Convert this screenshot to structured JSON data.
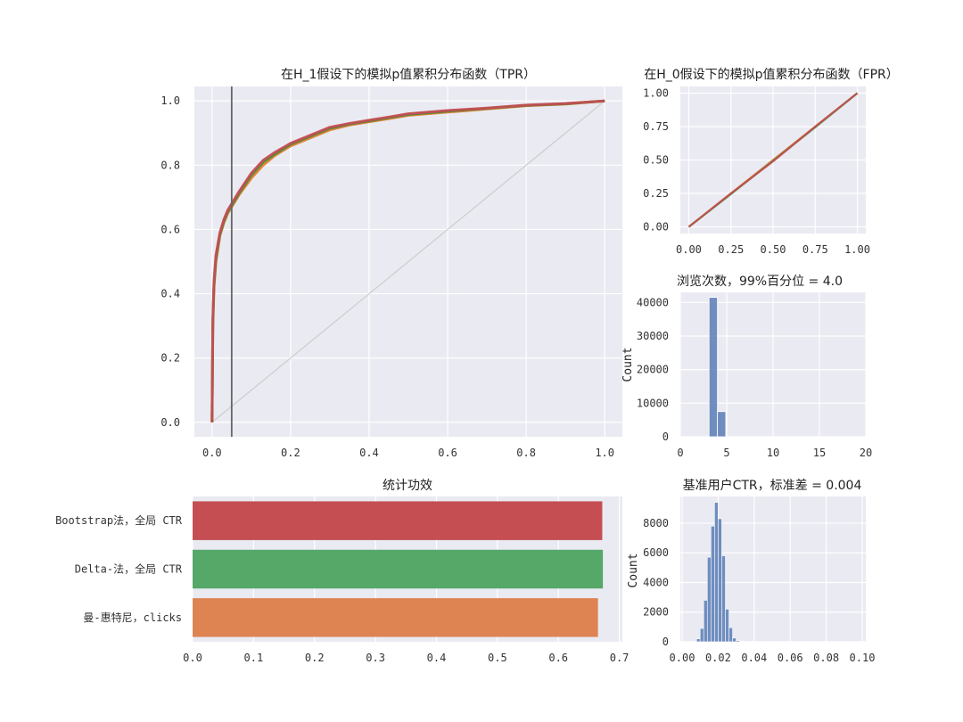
{
  "chart_data": [
    {
      "id": "tpr",
      "type": "line",
      "title": "在H_1假设下的模拟p值累积分布函数（TPR）",
      "xlim": [
        -0.045,
        1.045
      ],
      "ylim": [
        -0.045,
        1.045
      ],
      "xticks": [
        "0.0",
        "0.2",
        "0.4",
        "0.6",
        "0.8",
        "1.0"
      ],
      "yticks": [
        "0.0",
        "0.2",
        "0.4",
        "0.6",
        "0.8",
        "1.0"
      ],
      "grid": true,
      "vline_x": 0.05,
      "reference_line": [
        [
          0,
          0
        ],
        [
          1,
          1
        ]
      ],
      "series": [
        {
          "color": "#e1812c",
          "x": [
            0,
            0.002,
            0.005,
            0.01,
            0.02,
            0.03,
            0.04,
            0.05,
            0.07,
            0.1,
            0.13,
            0.16,
            0.2,
            0.25,
            0.3,
            0.35,
            0.4,
            0.45,
            0.5,
            0.6,
            0.7,
            0.8,
            0.9,
            1.0
          ],
          "y": [
            0,
            0.3,
            0.42,
            0.5,
            0.58,
            0.62,
            0.65,
            0.67,
            0.71,
            0.76,
            0.8,
            0.83,
            0.86,
            0.885,
            0.91,
            0.925,
            0.935,
            0.945,
            0.955,
            0.965,
            0.975,
            0.985,
            0.99,
            1.0
          ]
        },
        {
          "color": "#3a923a",
          "x": [
            0,
            0.002,
            0.005,
            0.01,
            0.02,
            0.03,
            0.04,
            0.05,
            0.07,
            0.1,
            0.13,
            0.16,
            0.2,
            0.25,
            0.3,
            0.35,
            0.4,
            0.45,
            0.5,
            0.6,
            0.7,
            0.8,
            0.9,
            1.0
          ],
          "y": [
            0,
            0.31,
            0.43,
            0.51,
            0.585,
            0.625,
            0.655,
            0.675,
            0.715,
            0.77,
            0.81,
            0.835,
            0.865,
            0.89,
            0.915,
            0.928,
            0.938,
            0.948,
            0.958,
            0.968,
            0.977,
            0.986,
            0.991,
            1.0
          ]
        },
        {
          "color": "#c44e52",
          "x": [
            0,
            0.002,
            0.005,
            0.01,
            0.02,
            0.03,
            0.04,
            0.05,
            0.07,
            0.1,
            0.13,
            0.16,
            0.2,
            0.25,
            0.3,
            0.35,
            0.4,
            0.45,
            0.5,
            0.6,
            0.7,
            0.8,
            0.9,
            1.0
          ],
          "y": [
            0,
            0.32,
            0.44,
            0.52,
            0.59,
            0.63,
            0.66,
            0.68,
            0.72,
            0.775,
            0.815,
            0.84,
            0.868,
            0.893,
            0.918,
            0.93,
            0.94,
            0.95,
            0.96,
            0.97,
            0.978,
            0.987,
            0.992,
            1.0
          ]
        }
      ]
    },
    {
      "id": "fpr",
      "type": "line",
      "title": "在H_0假设下的模拟p值累积分布函数（FPR）",
      "xlim": [
        -0.05,
        1.05
      ],
      "ylim": [
        -0.05,
        1.05
      ],
      "xticks": [
        "0.00",
        "0.25",
        "0.50",
        "0.75",
        "1.00"
      ],
      "yticks": [
        "0.00",
        "0.25",
        "0.50",
        "0.75",
        "1.00"
      ],
      "grid": true,
      "series": [
        {
          "color": "#e1812c",
          "x": [
            0,
            0.25,
            0.5,
            0.75,
            1.0
          ],
          "y": [
            0,
            0.25,
            0.5,
            0.75,
            1.0
          ]
        },
        {
          "color": "#3a923a",
          "x": [
            0,
            0.25,
            0.5,
            0.75,
            1.0
          ],
          "y": [
            0,
            0.245,
            0.495,
            0.745,
            1.0
          ]
        },
        {
          "color": "#c44e52",
          "x": [
            0,
            0.25,
            0.5,
            0.75,
            1.0
          ],
          "y": [
            0,
            0.25,
            0.49,
            0.75,
            1.0
          ]
        }
      ]
    },
    {
      "id": "views",
      "type": "bar",
      "title": "浏览次数，99%百分位 = 4.0",
      "ylabel": "Count",
      "xlim": [
        0,
        20
      ],
      "ylim": [
        0,
        40000
      ],
      "xticks": [
        "0",
        "5",
        "10",
        "15",
        "20"
      ],
      "yticks": [
        "0",
        "10000",
        "20000",
        "30000",
        "40000"
      ],
      "grid": true,
      "color": "#4c72b0",
      "bins": [
        {
          "x0": 3.1,
          "x1": 4.0,
          "value": 41500
        },
        {
          "x0": 4.0,
          "x1": 4.9,
          "value": 7500
        }
      ]
    },
    {
      "id": "power",
      "type": "bar",
      "orientation": "horizontal",
      "title": "统计功效",
      "xlim": [
        0,
        0.7
      ],
      "xticks": [
        "0.0",
        "0.1",
        "0.2",
        "0.3",
        "0.4",
        "0.5",
        "0.6",
        "0.7"
      ],
      "grid": true,
      "categories": [
        "Bootstrap法，全局 CTR",
        "Delta-法，全局 CTR",
        "曼-惠特尼，clicks"
      ],
      "values": [
        0.672,
        0.673,
        0.665
      ],
      "colors": [
        "#c44e52",
        "#55a868",
        "#dd8452"
      ]
    },
    {
      "id": "ctr",
      "type": "bar",
      "title": "基准用户CTR，标准差 = 0.004",
      "ylabel": "Count",
      "xlim": [
        0.0,
        0.1
      ],
      "ylim": [
        0,
        8000
      ],
      "xticks": [
        "0.00",
        "0.02",
        "0.04",
        "0.06",
        "0.08",
        "0.10"
      ],
      "yticks": [
        "0",
        "2000",
        "4000",
        "6000",
        "8000"
      ],
      "grid": true,
      "color": "#4c72b0",
      "bin_width": 0.002,
      "bin_starts": [
        0.008,
        0.01,
        0.012,
        0.014,
        0.016,
        0.018,
        0.02,
        0.022,
        0.024,
        0.026,
        0.028,
        0.03,
        0.032
      ],
      "values": [
        200,
        900,
        2800,
        5700,
        7800,
        9400,
        8300,
        5800,
        2200,
        950,
        250,
        80,
        30
      ]
    }
  ]
}
